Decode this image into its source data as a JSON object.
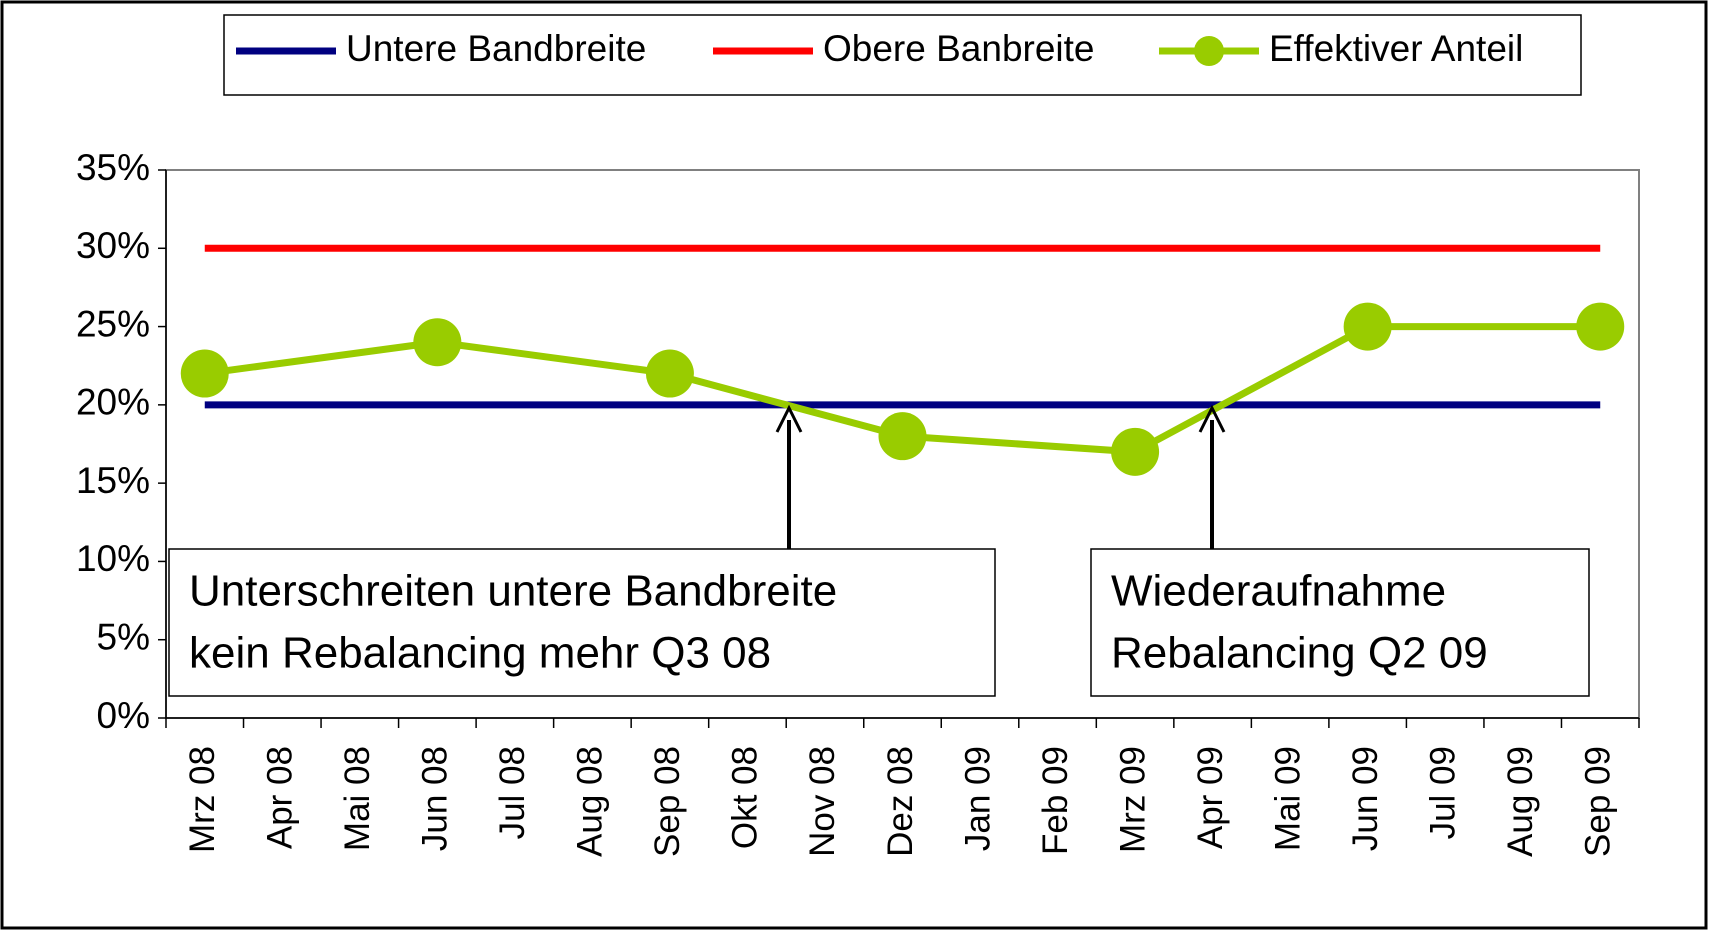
{
  "chart_data": {
    "type": "line",
    "categories": [
      "Mrz 08",
      "Apr 08",
      "Mai 08",
      "Jun 08",
      "Jul 08",
      "Aug 08",
      "Sep 08",
      "Okt 08",
      "Nov 08",
      "Dez 08",
      "Jan 09",
      "Feb 09",
      "Mrz 09",
      "Apr 09",
      "Mai 09",
      "Jun 09",
      "Jul 09",
      "Aug 09",
      "Sep 09"
    ],
    "series": [
      {
        "name": "Untere Bandbreite",
        "color": "#000080",
        "values": [
          20,
          20,
          20,
          20,
          20,
          20,
          20,
          20,
          20,
          20,
          20,
          20,
          20,
          20,
          20,
          20,
          20,
          20,
          20
        ]
      },
      {
        "name": "Obere Banbreite",
        "color": "#ff0000",
        "values": [
          30,
          30,
          30,
          30,
          30,
          30,
          30,
          30,
          30,
          30,
          30,
          30,
          30,
          30,
          30,
          30,
          30,
          30,
          30
        ]
      },
      {
        "name": "Effektiver Anteil",
        "color": "#99cc00",
        "marker": true,
        "x": [
          "Mrz 08",
          "Jun 08",
          "Sep 08",
          "Dez 08",
          "Mrz 09",
          "Jun 09",
          "Sep 09"
        ],
        "values": [
          22,
          24,
          22,
          18,
          17,
          25,
          25
        ]
      }
    ],
    "ylim": [
      0,
      35
    ],
    "yticks": [
      {
        "value": 0,
        "label": "0%"
      },
      {
        "value": 5,
        "label": "5%"
      },
      {
        "value": 10,
        "label": "10%"
      },
      {
        "value": 15,
        "label": "15%"
      },
      {
        "value": 20,
        "label": "20%"
      },
      {
        "value": 25,
        "label": "25%"
      },
      {
        "value": 30,
        "label": "30%"
      },
      {
        "value": 35,
        "label": "35%"
      }
    ],
    "legend": "top",
    "annotations": [
      [
        "Unterschreiten untere Bandbreite",
        "kein Rebalancing mehr Q3 08"
      ],
      [
        "Wiederaufnahme",
        "Rebalancing Q2 09"
      ]
    ]
  }
}
